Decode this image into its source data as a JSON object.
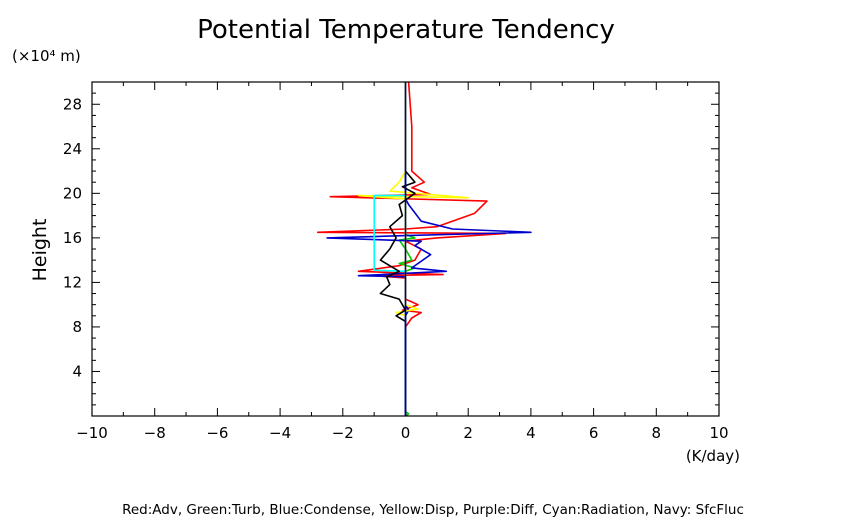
{
  "chart_data": {
    "type": "line",
    "title": "Potential Temperature Tendency",
    "ylabel": "Height",
    "yunit": "(×10⁴ m)",
    "xunit": "(K/day)",
    "xlim": [
      -10,
      10
    ],
    "ylim": [
      0,
      30
    ],
    "xticks": [
      -10,
      -8,
      -6,
      -4,
      -2,
      0,
      2,
      4,
      6,
      8,
      10
    ],
    "xtick_labels": [
      "−10",
      "−8",
      "−6",
      "−4",
      "−2",
      "0",
      "2",
      "4",
      "6",
      "8",
      "10"
    ],
    "yticks": [
      4,
      8,
      12,
      16,
      20,
      24,
      28
    ],
    "ytick_labels": [
      "4",
      "8",
      "12",
      "16",
      "20",
      "24",
      "28"
    ],
    "grid": false,
    "legend_text": "Red:Adv, Green:Turb, Blue:Condense, Yellow:Disp, Purple:Diff, Cyan:Radiation, Navy: SfcFluc",
    "series": [
      {
        "name": "Adv",
        "color": "#ff0000",
        "points": [
          [
            0,
            0
          ],
          [
            0,
            8
          ],
          [
            0.2,
            8.8
          ],
          [
            0.5,
            9.3
          ],
          [
            -0.1,
            9.5
          ],
          [
            0.4,
            10
          ],
          [
            0,
            10.5
          ],
          [
            0,
            12.4
          ],
          [
            -1,
            12.6
          ],
          [
            1.2,
            12.7
          ],
          [
            -1.5,
            13
          ],
          [
            -0.2,
            13.5
          ],
          [
            0.3,
            14
          ],
          [
            0.5,
            15
          ],
          [
            0,
            15.7
          ],
          [
            1,
            16
          ],
          [
            3.2,
            16.4
          ],
          [
            -2.8,
            16.5
          ],
          [
            0,
            16.8
          ],
          [
            1,
            17
          ],
          [
            2.2,
            18.2
          ],
          [
            2.6,
            19.3
          ],
          [
            -2.4,
            19.7
          ],
          [
            0.8,
            19.9
          ],
          [
            0.2,
            20.5
          ],
          [
            0.6,
            21
          ],
          [
            0.2,
            22
          ],
          [
            0.2,
            26
          ],
          [
            0.1,
            30
          ]
        ]
      },
      {
        "name": "Turb",
        "color": "#00cc00",
        "points": [
          [
            0,
            0
          ],
          [
            0.1,
            0.2
          ],
          [
            0,
            0.4
          ],
          [
            0,
            13
          ],
          [
            0.3,
            13.3
          ],
          [
            -0.2,
            13.7
          ],
          [
            0.2,
            14
          ],
          [
            0,
            15
          ],
          [
            -0.2,
            15.8
          ],
          [
            0.3,
            16
          ],
          [
            0,
            16.3
          ],
          [
            0,
            18
          ],
          [
            0,
            22
          ],
          [
            0,
            30
          ]
        ]
      },
      {
        "name": "Condense",
        "color": "#0000cc",
        "points": [
          [
            0,
            0
          ],
          [
            0,
            9
          ],
          [
            0.1,
            9.5
          ],
          [
            0,
            10
          ],
          [
            0,
            12.5
          ],
          [
            -1.5,
            12.6
          ],
          [
            1.3,
            13
          ],
          [
            0.2,
            13.3
          ],
          [
            0.8,
            14.5
          ],
          [
            0.3,
            15.3
          ],
          [
            0.5,
            15.7
          ],
          [
            -2.5,
            16
          ],
          [
            0,
            16.2
          ],
          [
            4,
            16.5
          ],
          [
            1.5,
            16.8
          ],
          [
            0.5,
            17.5
          ],
          [
            0.1,
            19
          ],
          [
            0,
            19.5
          ],
          [
            0,
            30
          ]
        ]
      },
      {
        "name": "Disp",
        "color": "#ffff00",
        "points": [
          [
            0,
            9
          ],
          [
            -0.3,
            9.3
          ],
          [
            0.4,
            9.6
          ],
          [
            0,
            10
          ],
          [
            0,
            18
          ],
          [
            0,
            19.5
          ],
          [
            -1.5,
            19.8
          ],
          [
            2,
            19.6
          ],
          [
            -0.5,
            20.2
          ],
          [
            -0.2,
            21
          ],
          [
            0,
            22
          ],
          [
            0,
            30
          ]
        ]
      },
      {
        "name": "Radiation",
        "color": "#00ffff",
        "points": [
          [
            0,
            13
          ],
          [
            -1,
            13.1
          ],
          [
            -1,
            19.8
          ],
          [
            0,
            19.8
          ]
        ]
      },
      {
        "name": "SfcFluc",
        "color": "#000000",
        "points": [
          [
            0,
            8.5
          ],
          [
            -0.3,
            9
          ],
          [
            0,
            9.5
          ],
          [
            -0.2,
            10.5
          ],
          [
            -0.8,
            11
          ],
          [
            -0.5,
            11.8
          ],
          [
            -0.6,
            12.5
          ],
          [
            -0.2,
            13
          ],
          [
            -0.8,
            14
          ],
          [
            -0.5,
            15
          ],
          [
            -0.3,
            16
          ],
          [
            -0.5,
            17
          ],
          [
            -0.1,
            18
          ],
          [
            -0.2,
            19
          ],
          [
            0.3,
            20
          ],
          [
            -0.1,
            20.6
          ],
          [
            0.3,
            21
          ],
          [
            0,
            22
          ]
        ]
      },
      {
        "name": "Navy",
        "color": "#000080",
        "points": [
          [
            0,
            0
          ],
          [
            0,
            30
          ]
        ]
      }
    ]
  }
}
